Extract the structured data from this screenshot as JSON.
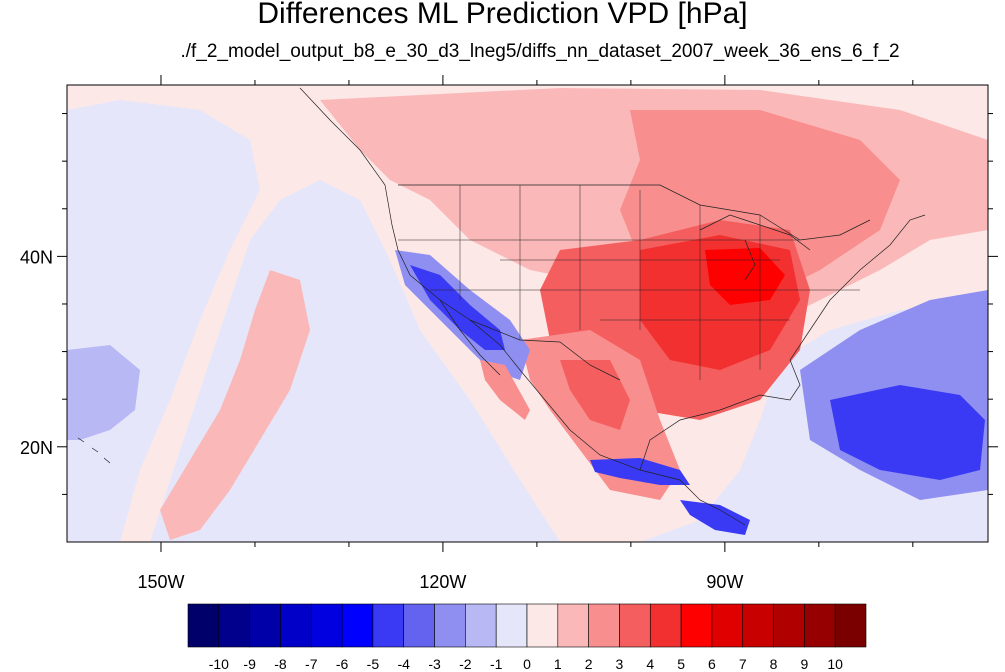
{
  "title": "Differences ML Prediction VPD [hPa]",
  "subtitle": "./f_2_model_output_b8_e_30_d3_lneg5/diffs_nn_dataset_2007_week_36_ens_6_f_2",
  "map": {
    "lon_range": [
      -160,
      -62
    ],
    "lat_range": [
      10,
      58
    ],
    "x_ticks": [
      {
        "lon": -150,
        "label": "150W"
      },
      {
        "lon": -120,
        "label": "120W"
      },
      {
        "lon": -90,
        "label": "90W"
      }
    ],
    "y_ticks": [
      {
        "lat": 20,
        "label": "20N"
      },
      {
        "lat": 40,
        "label": "40N"
      }
    ],
    "minor_x_lons": [
      -140,
      -130,
      -110,
      -100,
      -80,
      -70
    ],
    "minor_y_lats": [
      15,
      25,
      30,
      35,
      45,
      50,
      55
    ]
  },
  "colorbar": {
    "labels": [
      "-10",
      "-9",
      "-8",
      "-7",
      "-6",
      "-5",
      "-4",
      "-3",
      "-2",
      "-1",
      "0",
      "1",
      "2",
      "3",
      "4",
      "5",
      "6",
      "7",
      "8",
      "9",
      "10"
    ],
    "colors": [
      "#00006b",
      "#00008c",
      "#0000a8",
      "#0000c8",
      "#0000e0",
      "#0000ff",
      "#3a3af5",
      "#6363f0",
      "#8f8ff2",
      "#b8b8f5",
      "#e6e6fa",
      "#fde8e8",
      "#fbb8b8",
      "#f88e8e",
      "#f55e5e",
      "#f23030",
      "#ff0000",
      "#e00000",
      "#c80000",
      "#b00000",
      "#960000",
      "#7a0000"
    ]
  },
  "regions": [
    {
      "name": "pacific-background",
      "color": "#e6e6fa"
    },
    {
      "name": "north-pink-belt",
      "color": "#fde8e8"
    },
    {
      "name": "canada-light-red",
      "color": "#fbb8b8"
    },
    {
      "name": "hudson-red",
      "color": "#f88e8e"
    },
    {
      "name": "central-us-red",
      "color": "#f55e5e"
    },
    {
      "name": "midwest-core",
      "color": "#f23030"
    },
    {
      "name": "ohio-valley-peak",
      "color": "#ff0000"
    },
    {
      "name": "mexico-red",
      "color": "#f88e8e"
    },
    {
      "name": "mexico-core",
      "color": "#f55e5e"
    },
    {
      "name": "california-blue",
      "color": "#8f8ff2"
    },
    {
      "name": "baja-blue-core",
      "color": "#3a3af5"
    },
    {
      "name": "pacific-pink-band",
      "color": "#fbb8b8"
    },
    {
      "name": "west-pacific-blue",
      "color": "#b8b8f5"
    },
    {
      "name": "atlantic-blue",
      "color": "#8f8ff2"
    },
    {
      "name": "caribbean-blue-core",
      "color": "#3a3af5"
    },
    {
      "name": "gulf-blue-strip",
      "color": "#3a3af5"
    },
    {
      "name": "central-america-blue",
      "color": "#3a3af5"
    },
    {
      "name": "pacific-red-spot",
      "color": "#f88e8e"
    }
  ]
}
